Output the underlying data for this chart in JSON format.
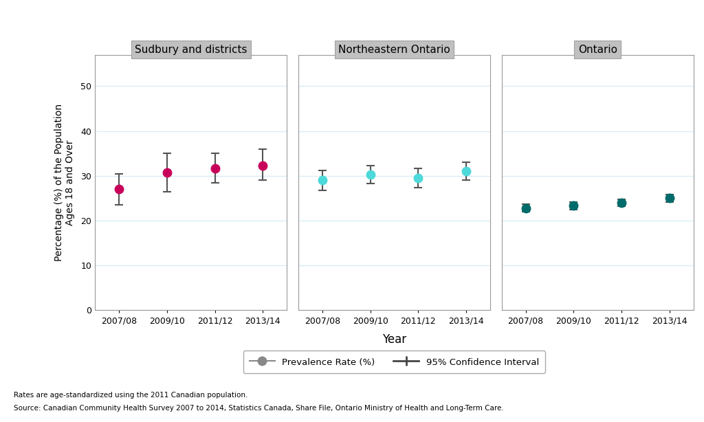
{
  "panels": [
    {
      "title": "Sudbury and districts",
      "color": "#C8005A",
      "years": [
        "2007/08",
        "2009/10",
        "2011/12",
        "2013/14"
      ],
      "values": [
        27.0,
        30.8,
        31.7,
        32.3
      ],
      "ci_low": [
        23.5,
        26.5,
        28.5,
        29.0
      ],
      "ci_high": [
        30.5,
        35.0,
        35.0,
        36.0
      ]
    },
    {
      "title": "Northeastern Ontario",
      "color": "#4DD9D9",
      "years": [
        "2007/08",
        "2009/10",
        "2011/12",
        "2013/14"
      ],
      "values": [
        29.0,
        30.3,
        29.5,
        31.0
      ],
      "ci_low": [
        26.8,
        28.3,
        27.3,
        29.0
      ],
      "ci_high": [
        31.2,
        32.3,
        31.7,
        33.0
      ]
    },
    {
      "title": "Ontario",
      "color": "#006B6B",
      "years": [
        "2007/08",
        "2009/10",
        "2011/12",
        "2013/14"
      ],
      "values": [
        22.8,
        23.3,
        24.0,
        25.0
      ],
      "ci_low": [
        22.0,
        22.5,
        23.2,
        24.2
      ],
      "ci_high": [
        23.6,
        24.1,
        24.8,
        25.8
      ]
    }
  ],
  "ylabel": "Percentage (%) of the Population\nAges 18 and Over",
  "xlabel": "Year",
  "ylim": [
    0,
    57
  ],
  "yticks": [
    0,
    10,
    20,
    30,
    40,
    50
  ],
  "background_color": "#FFFFFF",
  "panel_bg": "#FFFFFF",
  "title_bg": "#C0C0C0",
  "title_border": "#A0A0A0",
  "grid_color": "#D8EEF5",
  "ecolor": "#555555",
  "footnote_line1": "Rates are age-standardized using the 2011 Canadian population.",
  "footnote_line2": "Source: Canadian Community Health Survey 2007 to 2014, Statistics Canada, Share File, Ontario Ministry of Health and Long-Term Care."
}
